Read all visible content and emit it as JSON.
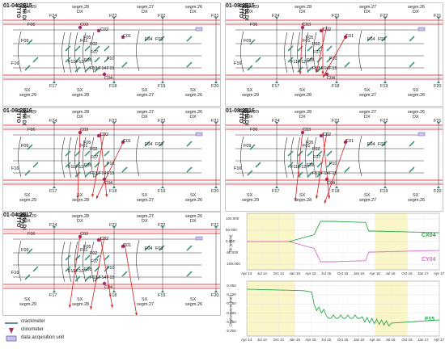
{
  "panels": [
    {
      "date": "01-04-2015",
      "town_left": "FORNI DI SOTTO",
      "town_right": ""
    },
    {
      "date": "01-08-2015",
      "town_left": "FORNI DI SOTTO",
      "town_right": "AMPEZZO"
    },
    {
      "date": "01-06-2016",
      "town_left": "FORNI DI SOTTO",
      "town_right": ""
    },
    {
      "date": "01-08-2016",
      "town_left": "FORNI DI SOTTO",
      "town_right": "AMPEZZO"
    },
    {
      "date": "01-04-2017",
      "town_left": "FORNI DI SOTTO",
      "town_right": "AMPEZZO"
    }
  ],
  "top_labels": [
    {
      "segm": "segm.29",
      "side": "DX"
    },
    {
      "segm": "segm.28",
      "side": "DX"
    },
    {
      "segm": "segm.27",
      "side": "DX"
    },
    {
      "segm": "segm.26",
      "side": "DX"
    }
  ],
  "bottom_labels": [
    {
      "segm": "segm.29",
      "side": "SX"
    },
    {
      "segm": "segm.28",
      "side": "SX"
    },
    {
      "segm": "segm.27",
      "side": "SX"
    },
    {
      "segm": "segm.26",
      "side": "SX"
    }
  ],
  "frames_top": [
    "F24",
    "F23",
    "F22",
    "F21"
  ],
  "frames_bottom": [
    "F17",
    "F18",
    "F19",
    "F20"
  ],
  "sensors": [
    "F09",
    "F06",
    "C03",
    "C02",
    "F01",
    "C01",
    "F04",
    "F03",
    "F02",
    "F07",
    "F08",
    "F10",
    "F11",
    "F12",
    "F13",
    "F14",
    "F15",
    "F16",
    "C04",
    "F05"
  ],
  "legend": {
    "crackmeter": "crackmeter",
    "clinometer": "clinometer",
    "dau": "data acquisition unit"
  },
  "chart_top": {
    "y_ticks": [
      "100.000",
      "50.000",
      "0.000",
      "-50.000",
      "-100.000"
    ],
    "y_label": "Tilt [mm/m]",
    "x_ticks": [
      "Apr 14",
      "Jul 14",
      "Oct 14",
      "Jan 15",
      "Apr 15",
      "Jul 15",
      "Oct 15",
      "Jan 16",
      "Apr 16",
      "Jul 16",
      "Oct 16",
      "Jan 17",
      "Apr 17"
    ],
    "series": [
      "CX04",
      "CY04"
    ]
  },
  "chart_bottom": {
    "y_ticks": [
      "-0.050",
      "-0.100",
      "-0.150",
      "-0.200",
      "-0.250",
      "-0.300"
    ],
    "y_label": "Displacement [mm]",
    "x_ticks": [
      "Apr 14",
      "Jul 14",
      "Oct 14",
      "Jan 15",
      "Apr 15",
      "Jul 15",
      "Oct 15",
      "Jan 16",
      "Apr 16",
      "Jul 16",
      "Oct 16",
      "Jan 17",
      "Apr 17"
    ],
    "series": [
      "F15"
    ]
  },
  "colors": {
    "rail": "#e8454d",
    "crack": "#2a8a6b",
    "clino": "#a0306a",
    "arrow": "#d62020",
    "cx": "#2aa84a",
    "cy": "#d96fc0",
    "f15": "#2aa84a",
    "band": "#fbf6c8"
  }
}
